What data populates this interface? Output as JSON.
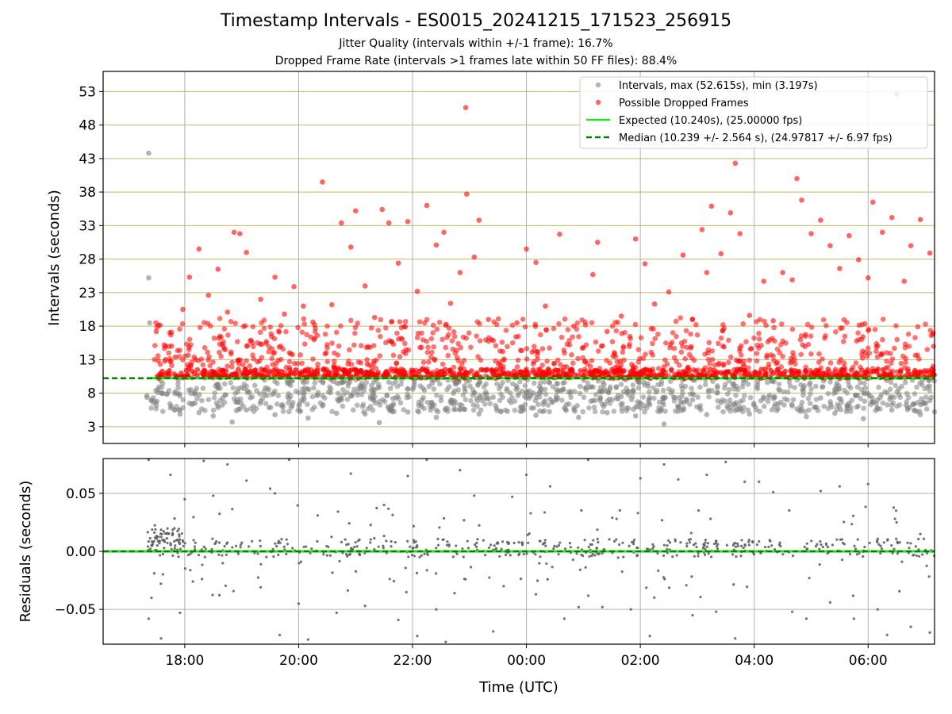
{
  "figure": {
    "title": "Timestamp Intervals - ES0015_20241215_171523_256915",
    "subtitle_1": "Jitter Quality (intervals within +/-1 frame): 16.7%",
    "subtitle_2": "Dropped Frame Rate (intervals >1 frames late within 50 FF files): 88.4%"
  },
  "colors": {
    "intervals": "#808080",
    "dropped": "#ff0000",
    "expected": "#22e022",
    "median": "#008000",
    "hgrid": "#c8b46e",
    "vgrid": "#b0b0b0"
  },
  "chart_data": [
    {
      "type": "scatter",
      "id": "top",
      "xlabel": "",
      "ylabel": "Intervals (seconds)",
      "x_range": [
        "16:34",
        "07:10"
      ],
      "ylim": [
        0.5,
        56
      ],
      "y_ticks": [
        3,
        8,
        13,
        18,
        23,
        28,
        33,
        38,
        43,
        48,
        53
      ],
      "y_tick_labels": [
        "3",
        "8",
        "13",
        "18",
        "23",
        "28",
        "33",
        "38",
        "43",
        "48",
        "53"
      ],
      "x_ticks": [
        "18:00",
        "20:00",
        "22:00",
        "00:00",
        "02:00",
        "04:00",
        "06:00"
      ],
      "x_tick_labels": [
        "18:00",
        "20:00",
        "22:00",
        "00:00",
        "02:00",
        "04:00",
        "06:00"
      ],
      "legend": {
        "placement": "top-right",
        "entries": [
          {
            "label": "Intervals, max (52.615s), min (3.197s)",
            "kind": "dot",
            "color": "#808080"
          },
          {
            "label": "Possible Dropped Frames",
            "kind": "dot",
            "color": "#ff0000"
          },
          {
            "label": "Expected (10.240s), (25.00000 fps)",
            "kind": "line",
            "color": "#22e022"
          },
          {
            "label": "Median (10.239 +/- 2.564 s), (24.97817 +/- 6.97 fps)",
            "kind": "dash",
            "color": "#008000"
          }
        ]
      },
      "series": [
        {
          "name": "Intervals, max (52.615s), min (3.197s)",
          "kind": "scatter",
          "points": [
            [
              "17:22",
              43.8
            ],
            [
              "17:22",
              25.2
            ],
            [
              "17:23",
              18.5
            ],
            [
              "17:25",
              7.0
            ],
            [
              "17:30",
              6.2
            ],
            [
              "17:35",
              8.1
            ],
            [
              "17:45",
              5.8
            ],
            [
              "17:55",
              4.9
            ],
            [
              "18:05",
              6.5
            ],
            [
              "18:15",
              5.1
            ],
            [
              "18:30",
              4.6
            ],
            [
              "18:40",
              7.3
            ],
            [
              "18:50",
              3.7
            ],
            [
              "19:05",
              5.5
            ],
            [
              "19:20",
              6.8
            ],
            [
              "19:35",
              4.8
            ],
            [
              "19:50",
              7.2
            ],
            [
              "20:10",
              4.3
            ],
            [
              "20:25",
              6.1
            ],
            [
              "20:40",
              5.0
            ],
            [
              "20:55",
              7.6
            ],
            [
              "21:10",
              4.9
            ],
            [
              "21:25",
              3.6
            ],
            [
              "21:40",
              6.4
            ],
            [
              "21:55",
              5.2
            ],
            [
              "22:10",
              7.0
            ],
            [
              "22:25",
              4.4
            ],
            [
              "22:40",
              6.7
            ],
            [
              "22:55",
              5.6
            ],
            [
              "23:10",
              4.9
            ],
            [
              "23:25",
              7.4
            ],
            [
              "23:40",
              5.3
            ],
            [
              "23:55",
              6.0
            ],
            [
              "00:10",
              4.7
            ],
            [
              "00:25",
              7.1
            ],
            [
              "00:40",
              5.8
            ],
            [
              "00:55",
              4.4
            ],
            [
              "01:10",
              6.9
            ],
            [
              "01:25",
              5.1
            ],
            [
              "01:40",
              7.5
            ],
            [
              "01:55",
              4.6
            ],
            [
              "02:10",
              6.3
            ],
            [
              "02:25",
              3.4
            ],
            [
              "02:40",
              5.9
            ],
            [
              "02:55",
              7.0
            ],
            [
              "03:10",
              4.8
            ],
            [
              "03:25",
              6.6
            ],
            [
              "03:40",
              5.4
            ],
            [
              "03:55",
              4.9
            ],
            [
              "04:10",
              7.2
            ],
            [
              "04:25",
              5.7
            ],
            [
              "04:40",
              6.1
            ],
            [
              "04:55",
              4.5
            ],
            [
              "05:10",
              7.3
            ],
            [
              "05:25",
              5.0
            ],
            [
              "05:40",
              6.5
            ],
            [
              "05:55",
              4.2
            ],
            [
              "06:10",
              7.0
            ],
            [
              "06:25",
              5.5
            ],
            [
              "06:40",
              6.2
            ],
            [
              "06:55",
              4.8
            ],
            [
              "07:05",
              6.9
            ]
          ]
        },
        {
          "name": "Possible Dropped Frames",
          "kind": "scatter",
          "points": [
            [
              "17:30",
              17.2
            ],
            [
              "17:40",
              15.0
            ],
            [
              "17:50",
              13.4
            ],
            [
              "17:58",
              20.5
            ],
            [
              "18:05",
              25.3
            ],
            [
              "18:15",
              29.5
            ],
            [
              "18:25",
              22.6
            ],
            [
              "18:35",
              26.5
            ],
            [
              "18:45",
              20.1
            ],
            [
              "18:52",
              32.0
            ],
            [
              "18:58",
              31.8
            ],
            [
              "19:05",
              29.0
            ],
            [
              "19:20",
              22.0
            ],
            [
              "19:35",
              25.3
            ],
            [
              "19:45",
              19.8
            ],
            [
              "19:55",
              23.9
            ],
            [
              "20:05",
              21.0
            ],
            [
              "20:15",
              18.6
            ],
            [
              "20:25",
              39.5
            ],
            [
              "20:35",
              21.2
            ],
            [
              "20:45",
              33.4
            ],
            [
              "20:55",
              29.8
            ],
            [
              "21:00",
              35.2
            ],
            [
              "21:10",
              24.0
            ],
            [
              "21:20",
              19.3
            ],
            [
              "21:28",
              35.4
            ],
            [
              "21:35",
              33.4
            ],
            [
              "21:45",
              27.4
            ],
            [
              "21:55",
              33.6
            ],
            [
              "22:05",
              23.2
            ],
            [
              "22:15",
              36.0
            ],
            [
              "22:25",
              30.1
            ],
            [
              "22:33",
              32.0
            ],
            [
              "22:40",
              21.4
            ],
            [
              "22:50",
              26.0
            ],
            [
              "22:56",
              50.6
            ],
            [
              "22:57",
              37.7
            ],
            [
              "23:05",
              28.3
            ],
            [
              "23:10",
              33.8
            ],
            [
              "23:20",
              19.0
            ],
            [
              "23:35",
              14.2
            ],
            [
              "23:50",
              18.5
            ],
            [
              "00:00",
              29.5
            ],
            [
              "00:10",
              27.5
            ],
            [
              "00:20",
              21.0
            ],
            [
              "00:35",
              31.7
            ],
            [
              "00:50",
              18.0
            ],
            [
              "01:00",
              14.8
            ],
            [
              "01:10",
              25.7
            ],
            [
              "01:15",
              30.5
            ],
            [
              "01:25",
              17.2
            ],
            [
              "01:40",
              19.5
            ],
            [
              "01:55",
              31.0
            ],
            [
              "02:05",
              27.3
            ],
            [
              "02:15",
              21.3
            ],
            [
              "02:30",
              23.1
            ],
            [
              "02:45",
              28.6
            ],
            [
              "02:55",
              19.0
            ],
            [
              "03:05",
              32.4
            ],
            [
              "03:10",
              26.0
            ],
            [
              "03:15",
              35.9
            ],
            [
              "03:25",
              28.8
            ],
            [
              "03:35",
              34.9
            ],
            [
              "03:40",
              42.3
            ],
            [
              "03:45",
              31.8
            ],
            [
              "03:55",
              19.6
            ],
            [
              "04:10",
              24.7
            ],
            [
              "04:20",
              18.8
            ],
            [
              "04:30",
              26.0
            ],
            [
              "04:40",
              24.9
            ],
            [
              "04:45",
              40.0
            ],
            [
              "04:50",
              36.8
            ],
            [
              "05:00",
              31.8
            ],
            [
              "05:10",
              33.8
            ],
            [
              "05:20",
              30.0
            ],
            [
              "05:30",
              26.6
            ],
            [
              "05:40",
              31.5
            ],
            [
              "05:50",
              27.9
            ],
            [
              "06:00",
              25.2
            ],
            [
              "06:05",
              36.5
            ],
            [
              "06:15",
              32.0
            ],
            [
              "06:25",
              34.2
            ],
            [
              "06:30",
              52.6
            ],
            [
              "06:38",
              24.7
            ],
            [
              "06:45",
              30.0
            ],
            [
              "06:55",
              33.9
            ],
            [
              "07:05",
              28.9
            ]
          ]
        },
        {
          "name": "Expected (10.240s), (25.00000 fps)",
          "kind": "hline",
          "value": 10.24,
          "x_start": "17:20"
        },
        {
          "name": "Median (10.239 +/- 2.564 s), (24.97817 +/- 6.97 fps)",
          "kind": "hline",
          "value": 10.239
        }
      ]
    },
    {
      "type": "scatter",
      "id": "bottom",
      "xlabel": "Time (UTC)",
      "ylabel": "Residuals (seconds)",
      "x_range": [
        "16:34",
        "07:10"
      ],
      "ylim": [
        -0.08,
        0.08
      ],
      "y_ticks": [
        -0.05,
        0,
        0.05
      ],
      "y_tick_labels": [
        "−0.05",
        "0.00",
        "0.05"
      ],
      "x_ticks": [
        "18:00",
        "20:00",
        "22:00",
        "00:00",
        "02:00",
        "04:00",
        "06:00"
      ],
      "x_tick_labels": [
        "18:00",
        "20:00",
        "22:00",
        "00:00",
        "02:00",
        "04:00",
        "06:00"
      ],
      "series": [
        {
          "name": "residuals",
          "kind": "scatter",
          "points": [
            [
              "17:22",
              0.079
            ],
            [
              "17:22",
              -0.058
            ],
            [
              "17:25",
              -0.04
            ],
            [
              "17:30",
              0.012
            ],
            [
              "17:35",
              -0.075
            ],
            [
              "17:45",
              0.066
            ],
            [
              "17:55",
              -0.053
            ],
            [
              "18:00",
              0.045
            ],
            [
              "18:20",
              0.078
            ],
            [
              "18:30",
              0.048
            ],
            [
              "18:45",
              0.075
            ],
            [
              "19:05",
              0.061
            ],
            [
              "19:20",
              -0.031
            ],
            [
              "19:30",
              0.054
            ],
            [
              "19:35",
              0.05
            ],
            [
              "19:40",
              -0.072
            ],
            [
              "19:50",
              0.079
            ],
            [
              "20:00",
              -0.045
            ],
            [
              "20:10",
              -0.076
            ],
            [
              "20:20",
              0.031
            ],
            [
              "20:40",
              -0.053
            ],
            [
              "20:55",
              0.067
            ],
            [
              "21:10",
              -0.047
            ],
            [
              "21:30",
              0.04
            ],
            [
              "21:45",
              -0.059
            ],
            [
              "21:55",
              0.065
            ],
            [
              "22:05",
              -0.073
            ],
            [
              "22:15",
              0.079
            ],
            [
              "22:25",
              -0.05
            ],
            [
              "22:35",
              -0.078
            ],
            [
              "22:50",
              0.07
            ],
            [
              "23:05",
              0.048
            ],
            [
              "23:25",
              -0.069
            ],
            [
              "23:45",
              0.047
            ],
            [
              "24:00",
              0.066
            ],
            [
              "00:10",
              -0.037
            ],
            [
              "00:25",
              0.056
            ],
            [
              "00:40",
              -0.058
            ],
            [
              "00:55",
              -0.048
            ],
            [
              "01:05",
              0.079
            ],
            [
              "01:20",
              -0.048
            ],
            [
              "01:35",
              0.028
            ],
            [
              "01:50",
              -0.05
            ],
            [
              "02:00",
              0.063
            ],
            [
              "02:10",
              -0.073
            ],
            [
              "02:25",
              0.075
            ],
            [
              "02:40",
              0.062
            ],
            [
              "02:55",
              -0.055
            ],
            [
              "03:10",
              0.066
            ],
            [
              "03:20",
              -0.052
            ],
            [
              "03:30",
              0.077
            ],
            [
              "03:40",
              -0.075
            ],
            [
              "03:50",
              0.06
            ],
            [
              "04:05",
              0.06
            ],
            [
              "04:20",
              0.051
            ],
            [
              "04:40",
              -0.052
            ],
            [
              "04:55",
              -0.058
            ],
            [
              "05:10",
              0.052
            ],
            [
              "05:20",
              -0.044
            ],
            [
              "05:30",
              0.056
            ],
            [
              "05:45",
              -0.058
            ],
            [
              "06:00",
              0.058
            ],
            [
              "06:10",
              -0.05
            ],
            [
              "06:20",
              -0.072
            ],
            [
              "06:30",
              0.025
            ],
            [
              "06:45",
              -0.065
            ],
            [
              "06:55",
              0.015
            ],
            [
              "07:05",
              -0.07
            ]
          ]
        },
        {
          "name": "Expected",
          "kind": "hline",
          "value": 0.0
        },
        {
          "name": "Median",
          "kind": "hline",
          "value": 0.0
        }
      ]
    }
  ]
}
